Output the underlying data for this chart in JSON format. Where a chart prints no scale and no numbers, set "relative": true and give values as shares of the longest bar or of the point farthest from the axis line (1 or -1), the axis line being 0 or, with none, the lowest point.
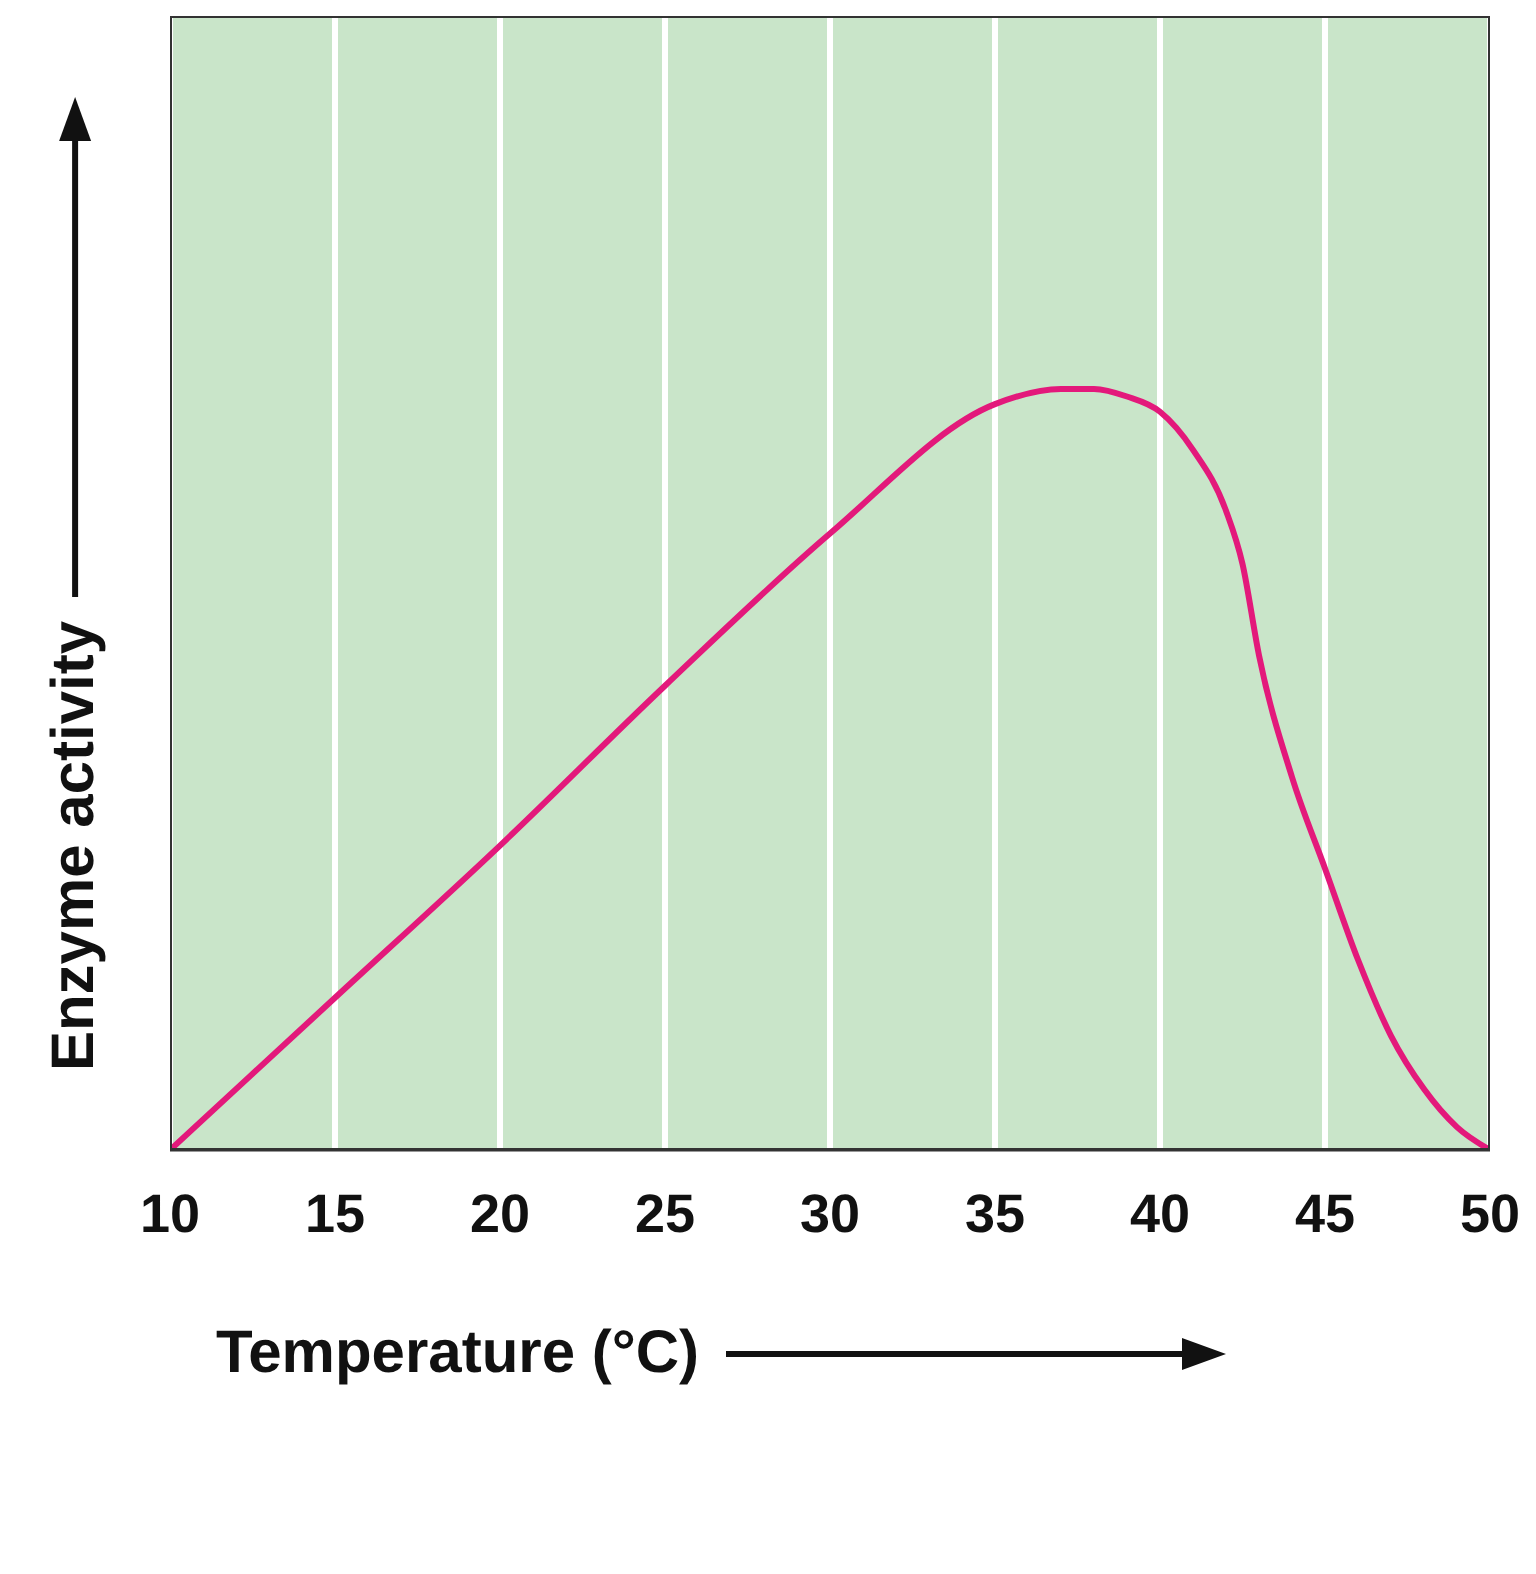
{
  "chart_data": {
    "type": "line",
    "relative": true,
    "xlabel": "Temperature (°C)",
    "ylabel": "Enzyme activity",
    "xlim": [
      10,
      50
    ],
    "xticks": [
      10,
      15,
      20,
      25,
      30,
      35,
      40,
      45,
      50
    ],
    "grid": "x",
    "marker": "none",
    "line_style": "solid",
    "series": [
      {
        "color": "#e3197b",
        "x": [
          10,
          15,
          20,
          25,
          30,
          35,
          37,
          38,
          39,
          40,
          41,
          42,
          42.5,
          43,
          44,
          45,
          46,
          47,
          48,
          49,
          50
        ],
        "values": [
          0,
          0.2,
          0.4,
          0.61,
          0.81,
          0.98,
          1,
          1,
          0.99,
          0.97,
          0.92,
          0.84,
          0.77,
          0.65,
          0.49,
          0.37,
          0.25,
          0.15,
          0.08,
          0.03,
          0
        ]
      }
    ]
  }
}
